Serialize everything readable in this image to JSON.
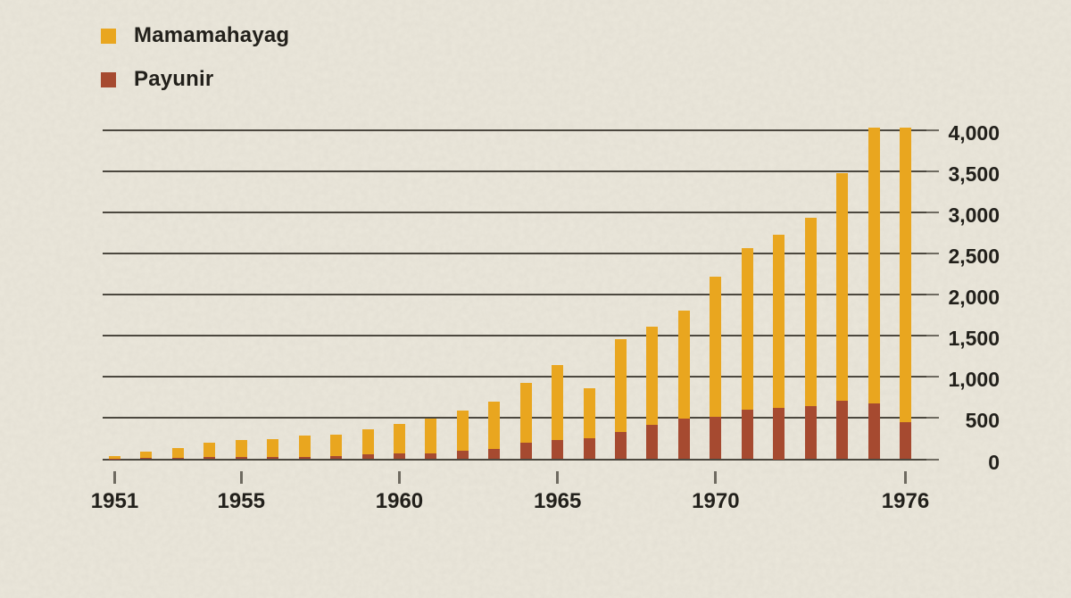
{
  "legend": {
    "items": [
      {
        "label": "Mamamahayag",
        "color": "#e9a61f"
      },
      {
        "label": "Payunir",
        "color": "#a64a30"
      }
    ]
  },
  "chart_data": {
    "type": "bar",
    "stacked": true,
    "title": "",
    "xlabel": "",
    "ylabel": "",
    "categories": [
      1951,
      1952,
      1953,
      1954,
      1955,
      1956,
      1957,
      1958,
      1959,
      1960,
      1961,
      1962,
      1963,
      1964,
      1965,
      1966,
      1967,
      1968,
      1969,
      1970,
      1971,
      1972,
      1973,
      1974,
      1975,
      1976
    ],
    "series": [
      {
        "name": "Payunir",
        "color": "#a64a30",
        "values": [
          8,
          12,
          18,
          22,
          28,
          25,
          32,
          40,
          55,
          68,
          72,
          98,
          128,
          200,
          228,
          258,
          330,
          420,
          490,
          520,
          600,
          625,
          650,
          710,
          680,
          455
        ]
      },
      {
        "name": "Mamamahayag",
        "color": "#e9a61f",
        "values": [
          32,
          78,
          117,
          178,
          207,
          220,
          258,
          260,
          310,
          357,
          418,
          492,
          572,
          730,
          912,
          607,
          1125,
          1195,
          1315,
          1700,
          1970,
          2100,
          2290,
          2770,
          3350,
          3575
        ]
      }
    ],
    "stack_totals": [
      40,
      90,
      135,
      200,
      235,
      245,
      290,
      300,
      365,
      425,
      490,
      590,
      700,
      930,
      1140,
      865,
      1455,
      1615,
      1805,
      2220,
      2570,
      2725,
      2940,
      3480,
      4030,
      4030
    ],
    "y_ticks": [
      {
        "value": 0,
        "label": "0"
      },
      {
        "value": 500,
        "label": "500"
      },
      {
        "value": 1000,
        "label": "1,000"
      },
      {
        "value": 1500,
        "label": "1,500"
      },
      {
        "value": 2000,
        "label": "2,000"
      },
      {
        "value": 2500,
        "label": "2,500"
      },
      {
        "value": 3000,
        "label": "3,000"
      },
      {
        "value": 3500,
        "label": "3,500"
      },
      {
        "value": 4000,
        "label": "4,000"
      }
    ],
    "x_ticks": [
      {
        "year": 1951,
        "label": "1951"
      },
      {
        "year": 1955,
        "label": "1955"
      },
      {
        "year": 1960,
        "label": "1960"
      },
      {
        "year": 1965,
        "label": "1965"
      },
      {
        "year": 1970,
        "label": "1970"
      },
      {
        "year": 1976,
        "label": "1976"
      }
    ],
    "ylim": [
      0,
      4030
    ],
    "grid": "horizontal-only",
    "legend_position": "top-left",
    "background_color": "#ebe7db",
    "gridline_color": "#4c483f",
    "text_color": "#22201b"
  }
}
